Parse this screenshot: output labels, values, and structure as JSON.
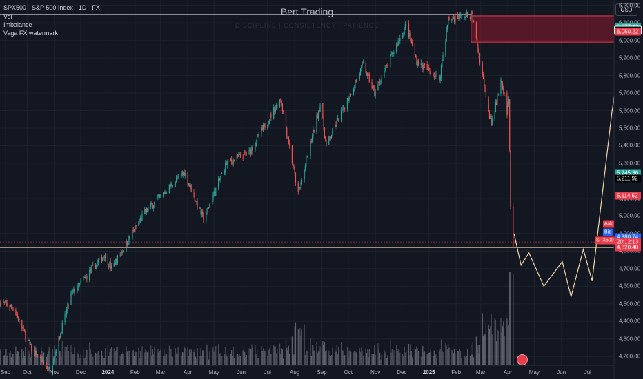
{
  "header": {
    "symbol_line": "SPX500 · S&P 500 Index · 1D · FX",
    "indicator_vol": "Vol",
    "indicator_imbalance": "Imbalance",
    "indicator_watermark": "Vaga FX watermark",
    "brand": "Bert Trading",
    "brand_sub": "DISCIPLINE  |  CONSISTENCY  |  PATIENCE",
    "currency": "USD"
  },
  "colors": {
    "background": "#131722",
    "up": "#26a69a",
    "down": "#ef5350",
    "projection": "#f5d7a8",
    "zone": "#8b1a2b"
  },
  "price_labels": [
    {
      "text": "6,077.43",
      "price": 6077.43,
      "color": "#26a69a"
    },
    {
      "text": "6,056.90",
      "price": 6056.9,
      "color": "#000000",
      "fg": "#ffffff",
      "border": "#ffffff"
    },
    {
      "text": "6,050.22",
      "price": 6050.22,
      "color": "#e83c4b"
    },
    {
      "text": "5,245.36",
      "price": 5245.36,
      "color": "#26a69a"
    },
    {
      "text": "5,211.92",
      "price": 5211.92,
      "color": "#000000",
      "fg": "#ffffff"
    },
    {
      "text": "5,114.52",
      "price": 5114.52,
      "color": "#e83c4b"
    },
    {
      "text": "4,881.34",
      "price": 4881.34,
      "color": "#e83c4b"
    },
    {
      "text": "4,880.74",
      "price": 4880.74,
      "color": "#2962ff"
    },
    {
      "text": "20:12:13",
      "price": 4852,
      "color": "#e83c4b"
    },
    {
      "text": "4,820.40",
      "price": 4820.4,
      "color": "#e83c4b"
    }
  ],
  "side_labels": {
    "ask": "Ask",
    "bid": "Bid",
    "symbol": "SPX500"
  },
  "chart_data": {
    "type": "candlestick",
    "y_ticks": [
      "6,200.00",
      "6,100.00",
      "6,000.00",
      "5,900.00",
      "5,800.00",
      "5,700.00",
      "5,600.00",
      "5,500.00",
      "5,400.00",
      "5,300.00",
      "5,200.00",
      "5,100.00",
      "5,000.00",
      "4,900.00",
      "4,800.00",
      "4,700.00",
      "4,600.00",
      "4,500.00",
      "4,400.00",
      "4,300.00",
      "4,200.00"
    ],
    "y_tick_values": [
      6200,
      6100,
      6000,
      5900,
      5800,
      5700,
      5600,
      5500,
      5400,
      5300,
      5200,
      5100,
      5000,
      4900,
      4800,
      4700,
      4600,
      4500,
      4400,
      4300,
      4200
    ],
    "ylim": [
      4150,
      6230
    ],
    "x_ticks": [
      "Sep",
      "Oct",
      "Nov",
      "Dec",
      "2024",
      "Feb",
      "Mar",
      "Apr",
      "May",
      "Jun",
      "Jul",
      "Aug",
      "Sep",
      "Oct",
      "Nov",
      "Dec",
      "2025",
      "Feb",
      "Mar",
      "Apr",
      "May",
      "Jun",
      "Jul"
    ],
    "x_tick_bold": [
      "2024",
      "2025"
    ],
    "x_range": [
      "2023-08-31",
      "2025-07-31"
    ],
    "anchors": [
      [
        "2023-08-31",
        4510
      ],
      [
        "2023-09-15",
        4480
      ],
      [
        "2023-10-05",
        4250
      ],
      [
        "2023-10-27",
        4120
      ],
      [
        "2023-11-20",
        4550
      ],
      [
        "2023-12-28",
        4780
      ],
      [
        "2024-01-05",
        4700
      ],
      [
        "2024-02-12",
        5020
      ],
      [
        "2024-03-28",
        5250
      ],
      [
        "2024-04-19",
        4980
      ],
      [
        "2024-05-15",
        5300
      ],
      [
        "2024-06-10",
        5360
      ],
      [
        "2024-07-16",
        5670
      ],
      [
        "2024-08-05",
        5120
      ],
      [
        "2024-08-30",
        5640
      ],
      [
        "2024-09-06",
        5400
      ],
      [
        "2024-10-18",
        5860
      ],
      [
        "2024-10-31",
        5700
      ],
      [
        "2024-12-06",
        6090
      ],
      [
        "2024-12-18",
        5880
      ],
      [
        "2025-01-13",
        5780
      ],
      [
        "2025-01-23",
        6120
      ],
      [
        "2025-02-19",
        6147
      ],
      [
        "2025-03-13",
        5520
      ],
      [
        "2025-03-25",
        5780
      ],
      [
        "2025-03-31",
        5580
      ],
      [
        "2025-04-02",
        5670
      ],
      [
        "2025-04-04",
        5070
      ],
      [
        "2025-04-07",
        4820
      ]
    ],
    "supply_zone": {
      "start": "2025-02-18",
      "end": "2025-07-31",
      "top": 6140,
      "bottom": 5990
    },
    "high_line": {
      "price": 6147,
      "start": "2023-08-31",
      "end": "2025-02-19"
    },
    "support_line": {
      "price": 4820.4,
      "start": "2023-08-31",
      "end": "2025-07-31"
    },
    "projection": [
      [
        "2025-04-08",
        4900
      ],
      [
        "2025-04-16",
        4720
      ],
      [
        "2025-04-25",
        4790
      ],
      [
        "2025-05-12",
        4600
      ],
      [
        "2025-06-02",
        4740
      ],
      [
        "2025-06-12",
        4540
      ],
      [
        "2025-06-26",
        4810
      ],
      [
        "2025-07-06",
        4630
      ],
      [
        "2025-07-29",
        5610
      ],
      [
        "2025-07-29",
        5600
      ],
      [
        "2025-07-31",
        5680
      ]
    ]
  }
}
